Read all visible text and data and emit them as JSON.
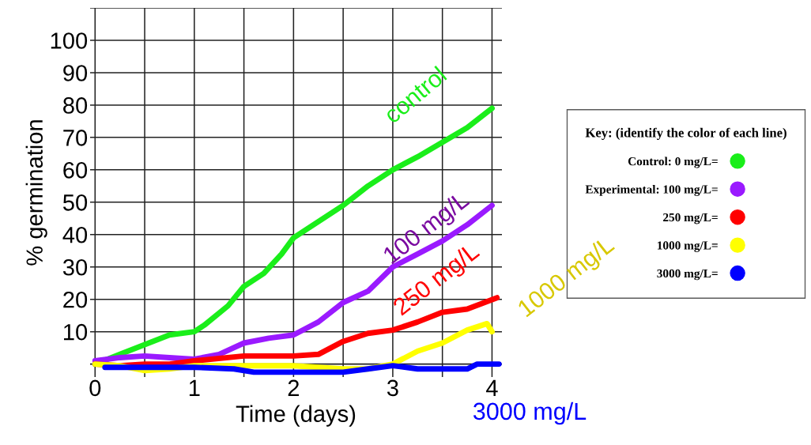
{
  "chart_data": {
    "type": "line",
    "xlabel": "Time (days)",
    "ylabel": "% germination",
    "legend_title": "Key: (identify the color of each line)",
    "xlim": [
      -0.05,
      4.1
    ],
    "ylim": [
      -4,
      110
    ],
    "xticks": [
      0,
      {
        "value": 0.5,
        "label": null
      },
      1,
      {
        "value": 1.5,
        "label": null
      },
      2,
      {
        "value": 2.5,
        "label": null
      },
      3,
      {
        "value": 3.5,
        "label": null
      },
      4
    ],
    "yticks": [
      {
        "value": 0,
        "label": null
      },
      10,
      20,
      30,
      40,
      50,
      60,
      70,
      80,
      90,
      100,
      {
        "value": 110,
        "label": null
      }
    ],
    "grid": true,
    "legend": "right",
    "marker": "none",
    "line_style": "solid",
    "series": [
      {
        "name": "Control: 0 mg/L=",
        "color": "#1aee1a",
        "x": [
          0,
          0.25,
          0.5,
          0.75,
          1,
          1.1,
          1.34,
          1.5,
          1.7,
          1.88,
          2,
          2.25,
          2.5,
          2.75,
          3,
          3.25,
          3.5,
          3.75,
          4
        ],
        "values": [
          0,
          3,
          6,
          9,
          10,
          12,
          18,
          24,
          28,
          34,
          39,
          44,
          49,
          55,
          60,
          64,
          68.5,
          73,
          79
        ]
      },
      {
        "name": "Experimental: 100 mg/L=",
        "color": "#9a1aff",
        "x": [
          0,
          0.25,
          0.5,
          0.75,
          1,
          1.25,
          1.5,
          1.75,
          2,
          2.25,
          2.5,
          2.75,
          3,
          3.25,
          3.5,
          3.75,
          4
        ],
        "values": [
          1,
          2,
          2.5,
          2,
          1.5,
          3,
          6.5,
          8,
          9,
          13,
          19,
          22.5,
          30,
          34,
          38,
          43,
          49
        ]
      },
      {
        "name": "250 mg/L=",
        "color": "#ff0000",
        "x": [
          0,
          0.25,
          0.5,
          0.75,
          1,
          1.5,
          2,
          2.25,
          2.5,
          2.75,
          3,
          3.25,
          3.5,
          3.75,
          4.05
        ],
        "values": [
          0,
          -0.5,
          0,
          0,
          1,
          2.5,
          2.5,
          3,
          7,
          9.5,
          10.5,
          13,
          16,
          17,
          20.5
        ]
      },
      {
        "name": "1000 mg/L=",
        "color": "#ffff00",
        "x": [
          0,
          0.25,
          0.5,
          0.75,
          1,
          1.5,
          2,
          2.5,
          2.75,
          3,
          3.25,
          3.5,
          3.75,
          3.95,
          4
        ],
        "values": [
          0,
          -0.5,
          -2,
          -1.5,
          -0.5,
          -0.5,
          -0.5,
          -1.5,
          -1.5,
          0,
          4,
          6.5,
          10.5,
          12.5,
          10
        ]
      },
      {
        "name": "3000 mg/L=",
        "color": "#0000ff",
        "x": [
          0.1,
          0.5,
          1,
          1.4,
          1.6,
          2,
          2.5,
          2.75,
          3,
          3.25,
          3.5,
          3.75,
          3.85,
          4.07
        ],
        "values": [
          -1,
          -1,
          -1,
          -1.5,
          -2.5,
          -2.5,
          -2.5,
          -1.5,
          -0.5,
          -1.5,
          -1.5,
          -1.5,
          0,
          0
        ]
      }
    ],
    "annotations": [
      "control",
      "100 mg/L",
      "250 mg/L",
      "1000 mg/L",
      "3000 mg/L"
    ]
  }
}
